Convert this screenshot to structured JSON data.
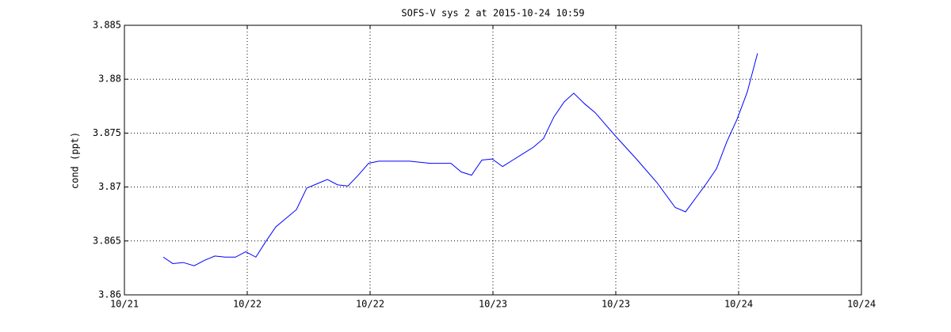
{
  "chart_data": {
    "type": "line",
    "title": "SOFS-V sys 2 at 2015-10-24 10:59",
    "y_label": "cond (ppt)",
    "grid": true,
    "xlim": [
      21,
      24
    ],
    "xticks": [
      {
        "value": 21,
        "label": "10/21"
      },
      {
        "value": 21.5,
        "label": "10/22"
      },
      {
        "value": 22,
        "label": "10/22"
      },
      {
        "value": 22.5,
        "label": "10/23"
      },
      {
        "value": 23,
        "label": "10/23"
      },
      {
        "value": 23.5,
        "label": "10/24"
      },
      {
        "value": 24,
        "label": "10/24"
      }
    ],
    "ylim": [
      3.86,
      3.885
    ],
    "yticks": [
      3.86,
      3.865,
      3.87,
      3.875,
      3.88,
      3.885
    ],
    "x": [
      21.158,
      21.197,
      21.239,
      21.284,
      21.326,
      21.368,
      21.41,
      21.452,
      21.494,
      21.535,
      21.577,
      21.616,
      21.658,
      21.7,
      21.742,
      21.784,
      21.826,
      21.868,
      21.91,
      21.952,
      21.994,
      22.035,
      22.077,
      22.161,
      22.245,
      22.287,
      22.329,
      22.371,
      22.413,
      22.455,
      22.497,
      22.539,
      22.581,
      22.623,
      22.665,
      22.706,
      22.748,
      22.79,
      22.829,
      22.874,
      22.916,
      23.0,
      23.084,
      23.168,
      23.242,
      23.284,
      23.326,
      23.368,
      23.41,
      23.452,
      23.494,
      23.535,
      23.577
    ],
    "series": [
      {
        "color": "#0000ff",
        "values": [
          3.8635,
          3.8629,
          3.863,
          3.8627,
          3.8632,
          3.8636,
          3.8635,
          3.8635,
          3.864,
          3.8635,
          3.865,
          3.8663,
          3.8671,
          3.8679,
          3.8699,
          3.8703,
          3.8707,
          3.8702,
          3.8701,
          3.8711,
          3.8722,
          3.8724,
          3.8724,
          3.8724,
          3.8722,
          3.8722,
          3.8722,
          3.8714,
          3.8711,
          3.8725,
          3.8726,
          3.8719,
          3.8725,
          3.8731,
          3.8737,
          3.8745,
          3.8765,
          3.8779,
          3.8787,
          3.8777,
          3.8769,
          3.8747,
          3.8726,
          3.8704,
          3.8681,
          3.8677,
          3.869,
          3.8703,
          3.8717,
          3.8742,
          3.8763,
          3.8788,
          3.8824
        ]
      }
    ]
  }
}
